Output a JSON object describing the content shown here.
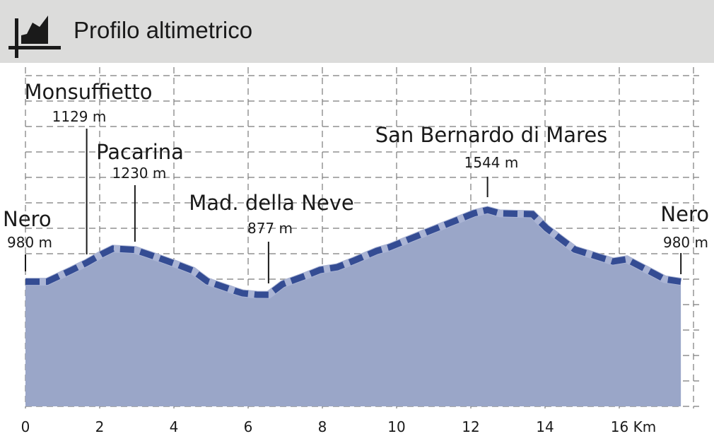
{
  "header": {
    "title": "Profilo altimetrico",
    "icon": "elevation-profile-icon"
  },
  "chart_data": {
    "type": "area",
    "title": "Profilo altimetrico",
    "xlabel": "",
    "ylabel": "",
    "x_unit": "Km",
    "xlim": [
      0,
      18
    ],
    "ylim": [
      0,
      2700
    ],
    "x_ticks": [
      0,
      2,
      4,
      6,
      8,
      10,
      12,
      14,
      16
    ],
    "x_tick_labels": [
      "0",
      "2",
      "4",
      "6",
      "8",
      "10",
      "12",
      "14",
      "16 Km"
    ],
    "y_grid_step": 200,
    "x_grid_step": 2,
    "grid": true,
    "y_tick_labels_shown": false,
    "colors": {
      "fill": "#9aa6c8",
      "line": "#344c93",
      "line_halo": "#aab4d4",
      "grid": "#7a7a7a"
    },
    "x": [
      0,
      0.58,
      0.8,
      1.22,
      1.65,
      2.04,
      2.36,
      2.95,
      3.37,
      4.02,
      4.51,
      4.9,
      5.66,
      5.85,
      6.23,
      6.55,
      6.93,
      7.56,
      7.94,
      8.4,
      8.84,
      9.47,
      9.8,
      10.74,
      11.7,
      12.08,
      12.45,
      12.78,
      13.66,
      14.04,
      14.8,
      15.83,
      16.2,
      16.97,
      17.22,
      17.66
    ],
    "y": [
      980,
      980,
      1010,
      1067,
      1129,
      1194,
      1240,
      1230,
      1189,
      1122,
      1067,
      983,
      906,
      889,
      878,
      877,
      961,
      1028,
      1072,
      1094,
      1144,
      1222,
      1250,
      1361,
      1472,
      1517,
      1544,
      1517,
      1511,
      1400,
      1233,
      1139,
      1156,
      1039,
      1000,
      980
    ],
    "annotations": [
      {
        "name": "Nero",
        "elevation": "980 m",
        "km": 0
      },
      {
        "name": "Monsuffietto",
        "elevation": "1129 m",
        "km": 1.65
      },
      {
        "name": "Pacarina",
        "elevation": "1230 m",
        "km": 2.95
      },
      {
        "name": "Mad. della Neve",
        "elevation": "877 m",
        "km": 6.55
      },
      {
        "name": "San Bernardo di Mares",
        "elevation": "1544 m",
        "km": 12.45
      },
      {
        "name": "Nero",
        "elevation": "980 m",
        "km": 17.66
      }
    ]
  }
}
